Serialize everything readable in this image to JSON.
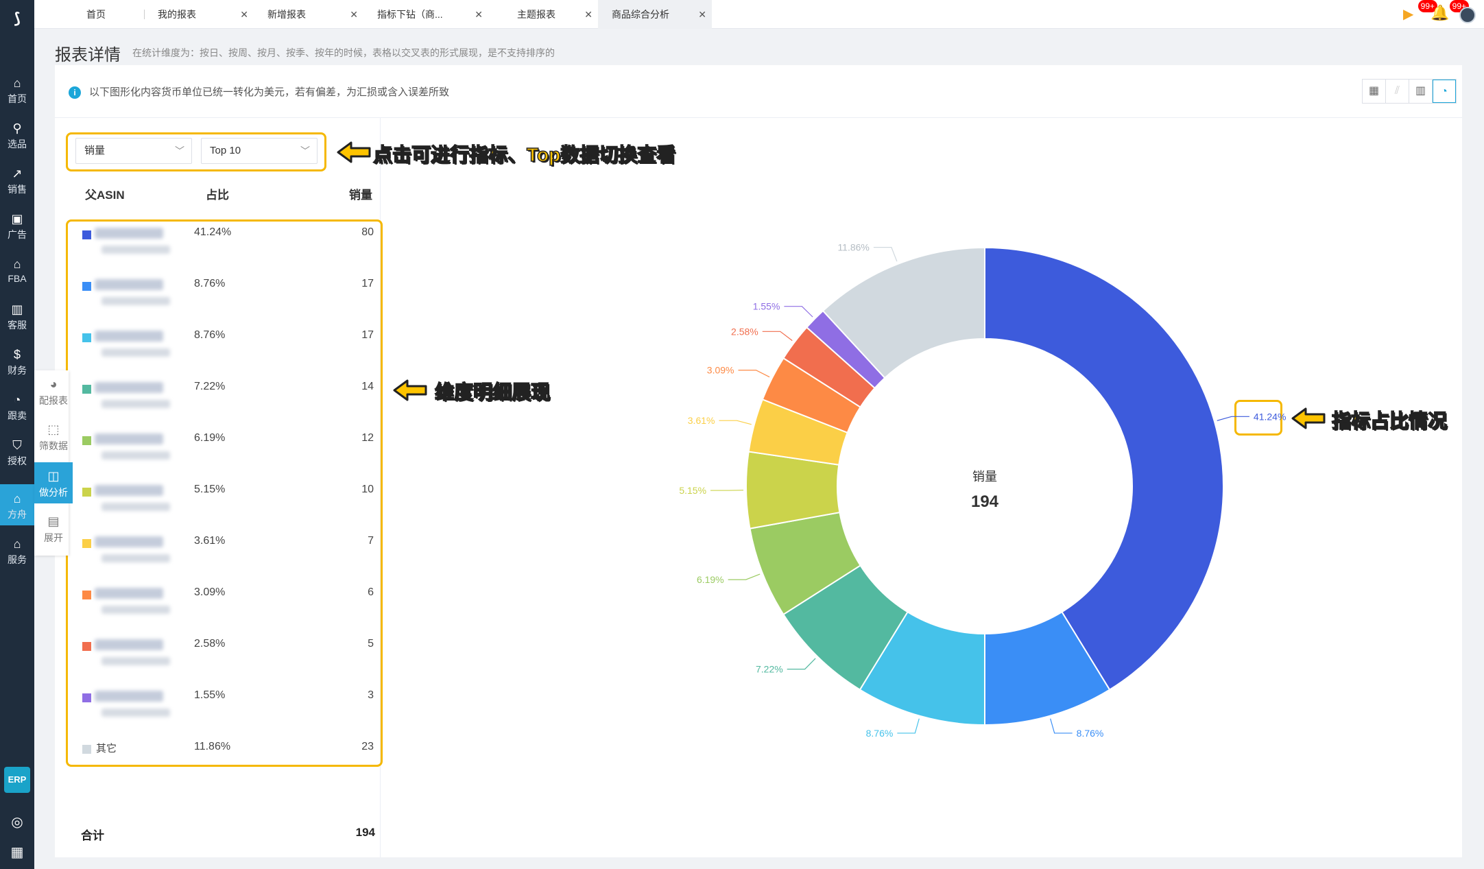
{
  "nav": {
    "items": [
      {
        "label": "首页",
        "icon": "home-icon"
      },
      {
        "label": "选品",
        "icon": "search-icon"
      },
      {
        "label": "销售",
        "icon": "trend-icon"
      },
      {
        "label": "广告",
        "icon": "ad-icon"
      },
      {
        "label": "FBA",
        "icon": "store-icon"
      },
      {
        "label": "客服",
        "icon": "report-icon"
      },
      {
        "label": "财务",
        "icon": "dollar-icon"
      },
      {
        "label": "跟卖",
        "icon": "pie-icon"
      },
      {
        "label": "授权",
        "icon": "shield-icon"
      },
      {
        "label": "方舟",
        "icon": "ark-icon"
      },
      {
        "label": "服务",
        "icon": "service-icon"
      }
    ],
    "erp": "ERP"
  },
  "tabs": [
    {
      "label": "首页"
    },
    {
      "label": "我的报表"
    },
    {
      "label": "新增报表"
    },
    {
      "label": "指标下钻（商..."
    },
    {
      "label": "主题报表"
    },
    {
      "label": "商品综合分析"
    }
  ],
  "badges": {
    "flag": "99+",
    "bell": "99+"
  },
  "page": {
    "title": "报表详情",
    "hint": "在统计维度为：按日、按周、按月、按季、按年的时候，表格以交叉表的形式展现，是不支持排序的",
    "notice": "以下图形化内容货币单位已统一转化为美元，若有偏差，为汇损或含入误差所致"
  },
  "side_tools": [
    {
      "label": "配报表",
      "icon": "pie-icon"
    },
    {
      "label": "筛数据",
      "icon": "chart-icon"
    },
    {
      "label": "做分析",
      "icon": "analysis-icon"
    },
    {
      "label": "展开",
      "icon": "expand-icon"
    }
  ],
  "controls": {
    "metric": "销量",
    "top": "Top 10"
  },
  "table": {
    "headers": {
      "asin": "父ASIN",
      "pct": "占比",
      "val": "销量"
    },
    "rows": [
      {
        "pct": "41.24%",
        "val": "80",
        "color": "#3d5bdc"
      },
      {
        "pct": "8.76%",
        "val": "17",
        "color": "#3a8ef6"
      },
      {
        "pct": "8.76%",
        "val": "17",
        "color": "#45c2ea"
      },
      {
        "pct": "7.22%",
        "val": "14",
        "color": "#53b9a0"
      },
      {
        "pct": "6.19%",
        "val": "12",
        "color": "#9bcb62"
      },
      {
        "pct": "5.15%",
        "val": "10",
        "color": "#cbd34b"
      },
      {
        "pct": "3.61%",
        "val": "7",
        "color": "#fbcf47"
      },
      {
        "pct": "3.09%",
        "val": "6",
        "color": "#fd8a45"
      },
      {
        "pct": "2.58%",
        "val": "5",
        "color": "#f16e4e"
      },
      {
        "pct": "1.55%",
        "val": "3",
        "color": "#8f6ee4"
      },
      {
        "name": "其它",
        "pct": "11.86%",
        "val": "23",
        "color": "#d1d9df"
      }
    ],
    "total_label": "合计",
    "total_value": "194"
  },
  "chart_data": {
    "type": "pie",
    "center_label": "销量",
    "center_value": "194",
    "labels": [
      "41.24%",
      "8.76%",
      "8.76%",
      "7.22%",
      "6.19%",
      "5.15%",
      "3.61%",
      "3.09%",
      "2.58%",
      "1.55%",
      "11.86%"
    ],
    "values": [
      80,
      17,
      17,
      14,
      12,
      10,
      7,
      6,
      5,
      3,
      23
    ],
    "colors": [
      "#3d5bdc",
      "#3a8ef6",
      "#45c2ea",
      "#53b9a0",
      "#9bcb62",
      "#cbd34b",
      "#fbcf47",
      "#fd8a45",
      "#f16e4e",
      "#8f6ee4",
      "#d1d9df"
    ]
  },
  "annotations": {
    "a1": "点击可进行指标、Top数据切换查看",
    "a2": "维度明细展现",
    "a3": "指标占比情况"
  }
}
